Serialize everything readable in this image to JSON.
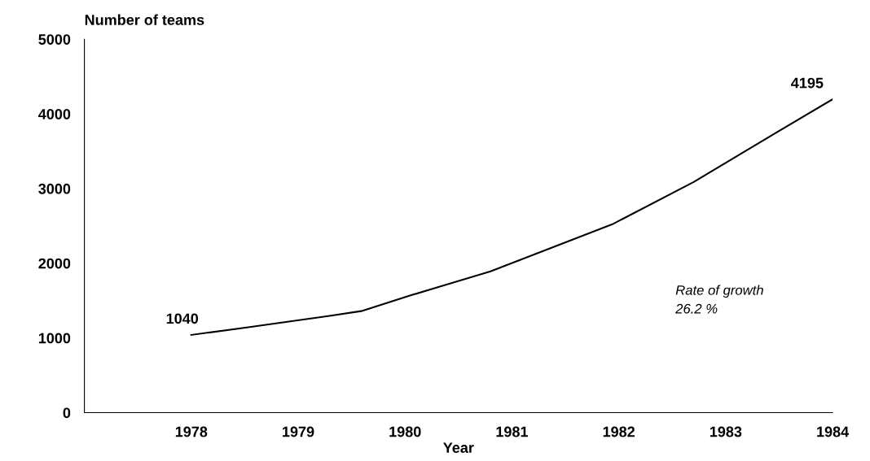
{
  "chart_data": {
    "type": "line",
    "x": [
      1978,
      1978.52,
      1979.28,
      1979.59,
      1980.04,
      1980.42,
      1980.8,
      1981.94,
      1982.7,
      1983.46,
      1984
    ],
    "values": [
      1040,
      1141,
      1293,
      1359,
      1565,
      1728,
      1891,
      2522,
      3087,
      3739,
      4195
    ],
    "value_labels": [
      "1040",
      null,
      null,
      null,
      null,
      null,
      null,
      null,
      null,
      null,
      "4195"
    ],
    "color": "#000000",
    "xlabel": "Year",
    "ylabel": "Number of teams",
    "xlim": [
      1977,
      1984
    ],
    "xticks": [
      1978,
      1979,
      1980,
      1981,
      1982,
      1983,
      1984
    ],
    "ylim": [
      0,
      5000
    ],
    "yticks": [
      0,
      1000,
      2000,
      3000,
      4000,
      5000
    ],
    "grid": false,
    "legend": false,
    "marker": "none",
    "line_style": "solid",
    "annotations": [
      "Rate of growth\n26.2 %"
    ]
  }
}
